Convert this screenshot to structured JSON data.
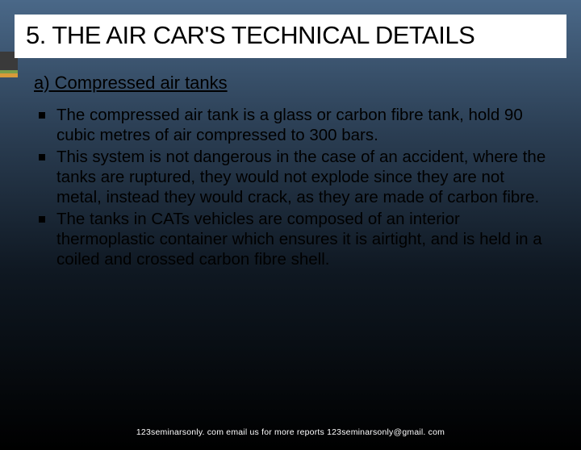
{
  "title": "5. THE AIR CAR'S TECHNICAL DETAILS",
  "subtitle": "a) Compressed air tanks",
  "bullets": [
    "The compressed air tank is a glass or carbon fibre tank, hold 90 cubic metres of air compressed to 300 bars.",
    "This system is not dangerous in the case of an accident, where the tanks are ruptured, they would not explode since they are not metal, instead they would crack, as they are made of carbon fibre.",
    "The tanks in CATs vehicles are composed of an interior thermoplastic container which ensures it is airtight, and is held in a coiled and crossed carbon fibre shell."
  ],
  "footer": "123seminarsonly. com email us for more reports 123seminarsonly@gmail. com",
  "colors": {
    "title_bg": "#ffffff",
    "text": "#000000",
    "footer_text": "#ffffff",
    "gradient_top": "#4a6888",
    "gradient_bottom": "#000000",
    "tab_dark": "#3a3a3a",
    "tab_green": "#7a9e4a",
    "tab_orange": "#d89a3a"
  },
  "typography": {
    "title_fontsize": 31,
    "subtitle_fontsize": 22,
    "body_fontsize": 20.5,
    "footer_fontsize": 10.5,
    "font_family": "Arial"
  }
}
